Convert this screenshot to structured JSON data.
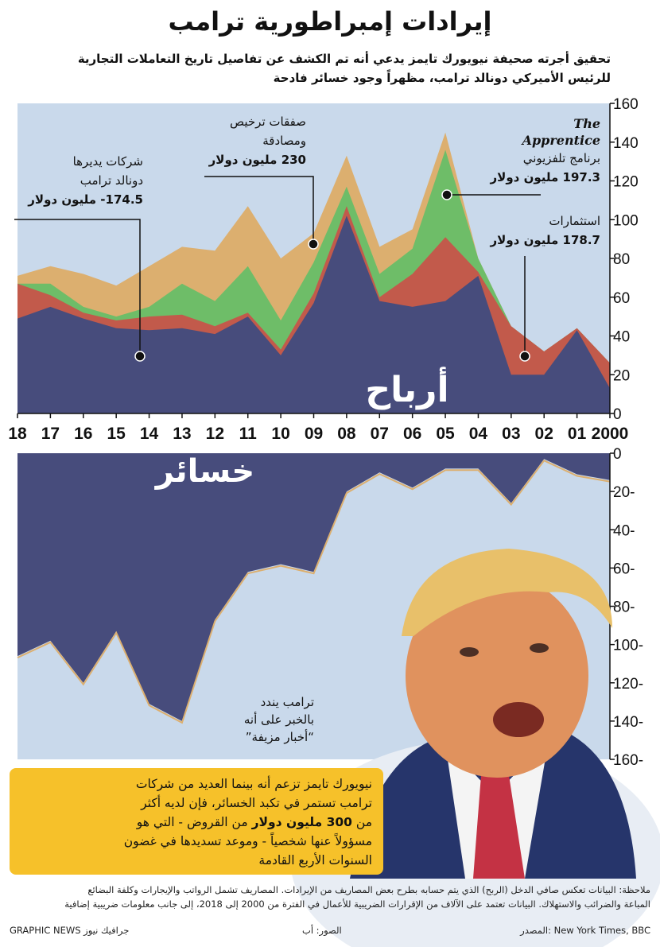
{
  "header": {
    "title": "إيرادات إمبراطورية ترامب",
    "subtitle_line1": "تحقيق أجرته صحيفة نيويورك تايمز يدعي أنه تم الكشف عن تفاصيل تاريخ التعاملات التجارية",
    "subtitle_line2": "للرئيس الأميركي دونالد ترامب، مظهراً وجود خسائر فادحة"
  },
  "colors": {
    "background": "#c9d9eb",
    "navy": "#474c7c",
    "red": "#c25a4b",
    "green": "#6ebd68",
    "tan": "#dcaf6f",
    "callout": "#f6c12a"
  },
  "chart_data": [
    {
      "type": "area",
      "label": "أرباح",
      "x_labels": [
        "2000",
        "01",
        "02",
        "03",
        "04",
        "05",
        "06",
        "07",
        "08",
        "09",
        "10",
        "11",
        "12",
        "13",
        "14",
        "15",
        "16",
        "17",
        "18"
      ],
      "x": [
        2000,
        2001,
        2002,
        2003,
        2004,
        2005,
        2006,
        2007,
        2008,
        2009,
        2010,
        2011,
        2012,
        2013,
        2014,
        2015,
        2016,
        2017,
        2018
      ],
      "ylim": [
        0,
        160
      ],
      "yticks": [
        0,
        20,
        40,
        60,
        80,
        100,
        120,
        140,
        160
      ],
      "stack": [
        {
          "values": [
            13,
            43,
            20,
            20,
            71,
            58,
            55,
            58,
            102,
            57,
            30,
            50,
            41,
            44,
            43,
            44,
            49,
            55,
            49
          ]
        },
        {
          "values": [
            26,
            44,
            32,
            45,
            73,
            91,
            72,
            60,
            107,
            62,
            33,
            52,
            45,
            51,
            50,
            48,
            52,
            61,
            67
          ]
        },
        {
          "values": [
            26,
            44,
            32,
            45,
            80,
            136,
            85,
            72,
            117,
            78,
            48,
            76,
            58,
            67,
            55,
            50,
            55,
            67,
            67
          ]
        },
        {
          "values": [
            26,
            44,
            32,
            45,
            80,
            145,
            95,
            86,
            133,
            93,
            80,
            107,
            84,
            86,
            76,
            66,
            72,
            76,
            71
          ]
        }
      ],
      "annotations": [
        {
          "line1": "شركات يديرها",
          "line2": "دونالد ترامب",
          "value": "174.5- مليون دولار"
        },
        {
          "line1": "صفقات ترخيص",
          "line2": "ومصادقة",
          "value": "230 مليون دولار"
        },
        {
          "line1": "The",
          "line2": "Apprentice",
          "line3": "برنامج تلفزيوني",
          "value": "197.3 مليون دولار"
        },
        {
          "line1": "استثمارات",
          "value": "178.7 مليون دولار"
        }
      ]
    },
    {
      "type": "area",
      "label": "خسائر",
      "x": [
        2000,
        2001,
        2002,
        2003,
        2004,
        2005,
        2006,
        2007,
        2008,
        2009,
        2010,
        2011,
        2012,
        2013,
        2014,
        2015,
        2016,
        2017,
        2018
      ],
      "ylim": [
        0,
        160
      ],
      "yticks": [
        0,
        20,
        40,
        60,
        80,
        100,
        120,
        140,
        160
      ],
      "values": [
        14,
        11,
        3,
        26,
        8,
        8,
        18,
        10,
        20,
        62,
        58,
        62,
        87,
        140,
        131,
        93,
        120,
        98,
        106
      ],
      "annotation": {
        "line1": "ترامب يندد",
        "line2": "بالخبر على أنه",
        "line3": "“أخبار مزيفة”"
      }
    }
  ],
  "callout": {
    "line1": "نيويورك تايمز تزعم أنه بينما العديد من شركات",
    "line2": "ترامب تستمر  في تكبد الخسائر، فإن لديه أكثر",
    "line3_pre": "من ",
    "line3_bold": "300 مليون دولار",
    "line3_post": " من القروض - التي هو",
    "line4": "مسؤولاً عنها شخصياً - وموعد تسديدها في غضون",
    "line5": "السنوات الأربع القادمة"
  },
  "notes": {
    "line1": "ملاحظة: البيانات تعكس صافي الدخل (الربح) الذي يتم حسابه بطرح بعض المصاريف من الإيرادات. المصاريف تشمل الرواتب والإيجارات وكلفة البضائع",
    "line2": "المباعة والضرائب والاستهلاك. البيانات تعتمد على الآلاف من الإقرارات الضريبية للأعمال في الفترة من 2000 إلى 2018، إلى جانب معلومات ضريبية إضافية"
  },
  "footer": {
    "source": "المصدر: New York Times, BBC",
    "photo": "الصور: أب",
    "credit": "GRAPHIC NEWS جرافيك نيوز"
  }
}
